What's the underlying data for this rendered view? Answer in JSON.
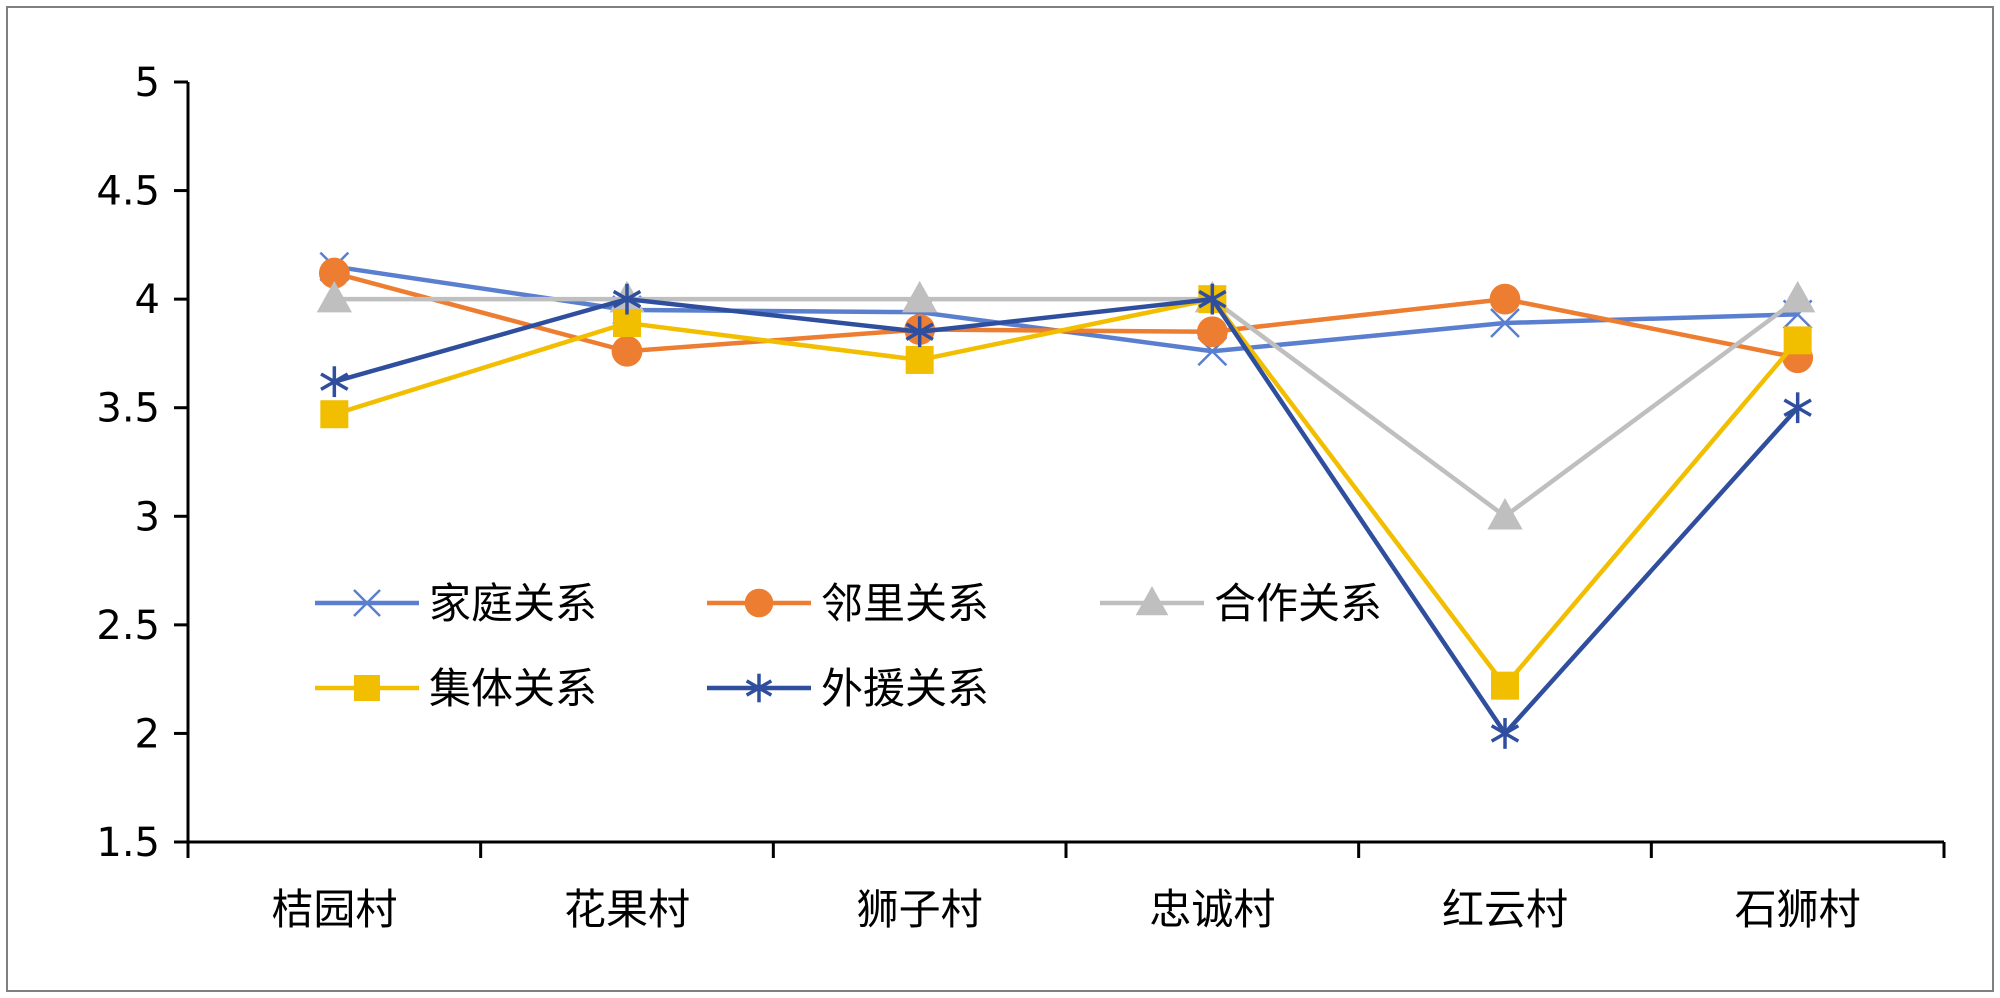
{
  "chart_data": {
    "type": "line",
    "categories": [
      "桔园村",
      "花果村",
      "狮子村",
      "忠诚村",
      "红云村",
      "石狮村"
    ],
    "ylim": [
      1.5,
      5
    ],
    "yticks": [
      "1.5",
      "2",
      "2.5",
      "3",
      "3.5",
      "4",
      "4.5",
      "5"
    ],
    "grid": false,
    "legend_position": "inside-lower-left",
    "series": [
      {
        "name": "家庭关系",
        "color": "#5B7FCF",
        "marker": "x",
        "values": [
          4.15,
          3.95,
          3.94,
          3.76,
          3.89,
          3.93
        ]
      },
      {
        "name": "邻里关系",
        "color": "#ED7D31",
        "marker": "circle",
        "values": [
          4.12,
          3.76,
          3.86,
          3.85,
          4.0,
          3.73
        ]
      },
      {
        "name": "合作关系",
        "color": "#BFBFBF",
        "marker": "triangle",
        "values": [
          4.0,
          4.0,
          4.0,
          4.0,
          3.0,
          4.0
        ]
      },
      {
        "name": "集体关系",
        "color": "#F2BE00",
        "marker": "square",
        "values": [
          3.47,
          3.89,
          3.72,
          4.0,
          2.22,
          3.81
        ]
      },
      {
        "name": "外援关系",
        "color": "#2F4F9E",
        "marker": "star",
        "values": [
          3.62,
          4.0,
          3.85,
          4.0,
          2.0,
          3.5
        ]
      }
    ]
  }
}
